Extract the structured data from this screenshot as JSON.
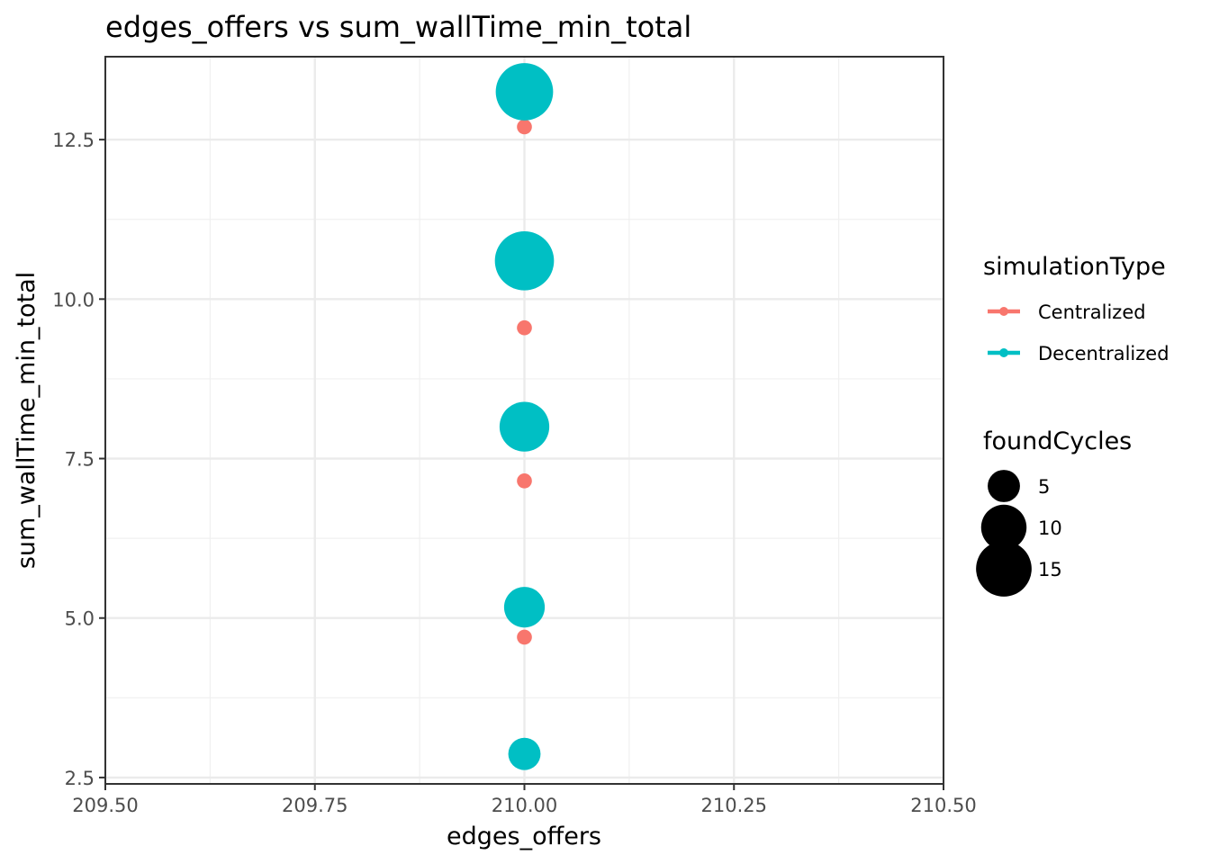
{
  "chart_data": {
    "type": "scatter",
    "title": "edges_offers  vs  sum_wallTime_min_total",
    "xlabel": "edges_offers",
    "ylabel": "sum_wallTime_min_total",
    "xlim": [
      209.5,
      210.5
    ],
    "ylim": [
      2.4,
      13.8
    ],
    "x_ticks": [
      209.5,
      209.75,
      210.0,
      210.25,
      210.5
    ],
    "x_tick_labels": [
      "209.50",
      "209.75",
      "210.00",
      "210.25",
      "210.50"
    ],
    "y_ticks": [
      2.5,
      5.0,
      7.5,
      10.0,
      12.5
    ],
    "y_tick_labels": [
      "2.5",
      "5.0",
      "7.5",
      "10.0",
      "12.5"
    ],
    "grid": true,
    "legend_placement": "right",
    "color_legend": {
      "title": "simulationType",
      "entries": [
        {
          "label": "Centralized",
          "color": "#F8766D"
        },
        {
          "label": "Decentralized",
          "color": "#00BFC4"
        }
      ]
    },
    "size_legend": {
      "title": "foundCycles",
      "entries": [
        {
          "label": "5",
          "value": 5
        },
        {
          "label": "10",
          "value": 10
        },
        {
          "label": "15",
          "value": 15
        }
      ]
    },
    "series": [
      {
        "name": "Centralized",
        "color": "#F8766D",
        "points": [
          {
            "x": 210.0,
            "y": 12.7,
            "size": 1
          },
          {
            "x": 210.0,
            "y": 10.9,
            "size": 1
          },
          {
            "x": 210.0,
            "y": 9.55,
            "size": 1
          },
          {
            "x": 210.0,
            "y": 7.15,
            "size": 1
          },
          {
            "x": 210.0,
            "y": 4.7,
            "size": 1
          }
        ]
      },
      {
        "name": "Decentralized",
        "color": "#00BFC4",
        "points": [
          {
            "x": 210.0,
            "y": 13.25,
            "size": 16
          },
          {
            "x": 210.0,
            "y": 10.6,
            "size": 17
          },
          {
            "x": 210.0,
            "y": 8.0,
            "size": 12
          },
          {
            "x": 210.0,
            "y": 5.17,
            "size": 8
          },
          {
            "x": 210.0,
            "y": 2.87,
            "size": 5
          }
        ]
      }
    ]
  }
}
